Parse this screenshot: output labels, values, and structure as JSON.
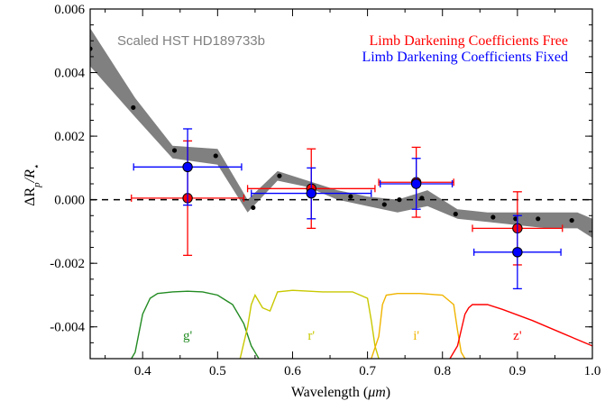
{
  "chart_data": {
    "type": "scatter",
    "xlabel": "Wavelength (",
    "xlabel_unit": "μm",
    "xlabel_close": ")",
    "ylabel": "ΔR",
    "ylabel_sub_p": "p",
    "ylabel_div": "/R",
    "ylabel_sub_star": "⋆",
    "xlim": [
      0.33,
      1.0
    ],
    "ylim": [
      -0.005,
      0.006
    ],
    "xticks": [
      0.4,
      0.5,
      0.6,
      0.7,
      0.8,
      0.9,
      1.0
    ],
    "xtick_labels": [
      "0.4",
      "0.5",
      "0.6",
      "0.7",
      "0.8",
      "0.9",
      "1.0"
    ],
    "yticks": [
      -0.004,
      -0.002,
      0.0,
      0.002,
      0.004,
      0.006
    ],
    "ytick_labels": [
      "-0.004",
      "-0.002",
      "0.000",
      "0.002",
      "0.004",
      "0.006"
    ],
    "reference_line_y": 0.0,
    "hst_label": "Scaled HST HD189733b",
    "hst_color": "#808080",
    "hst_band": {
      "x": [
        0.33,
        0.39,
        0.44,
        0.5,
        0.54,
        0.58,
        0.62,
        0.66,
        0.7,
        0.74,
        0.78,
        0.82,
        0.86,
        0.9,
        0.94,
        0.98,
        1.0
      ],
      "upper": [
        0.0054,
        0.0032,
        0.0017,
        0.0016,
        0.0,
        0.0009,
        0.0006,
        0.0003,
        0.0001,
        0.0,
        0.0003,
        -0.0003,
        -0.0004,
        -0.0004,
        -0.0004,
        -0.0004,
        -0.0006
      ],
      "lower": [
        0.0042,
        0.0026,
        0.0013,
        0.0011,
        -0.0004,
        0.0006,
        0.0004,
        0.0,
        -0.0002,
        -0.0004,
        -0.0002,
        -0.0006,
        -0.0007,
        -0.0008,
        -0.0009,
        -0.0009,
        -0.0012
      ]
    },
    "hst_points": {
      "x": [
        0.33,
        0.3875,
        0.4425,
        0.4975,
        0.5475,
        0.5825,
        0.6275,
        0.6775,
        0.7225,
        0.7425,
        0.7725,
        0.8175,
        0.8675,
        0.8975,
        0.9275,
        0.9725
      ],
      "y": [
        0.00475,
        0.0029,
        0.00155,
        0.00138,
        -0.00025,
        0.00075,
        0.00035,
        0.0001,
        -0.00015,
        0.0,
        5e-05,
        -0.00045,
        -0.00055,
        -0.0006,
        -0.0006,
        -0.00065
      ]
    },
    "series": [
      {
        "name": "Limb Darkening Coefficients Free",
        "color": "#ff0000",
        "points": [
          {
            "x": 0.46,
            "y": 5e-05,
            "xerr": 0.075,
            "yerr": 0.0018
          },
          {
            "x": 0.625,
            "y": 0.00035,
            "xerr": 0.085,
            "yerr": 0.00125
          },
          {
            "x": 0.765,
            "y": 0.00055,
            "xerr": 0.05,
            "yerr": 0.0011
          },
          {
            "x": 0.9,
            "y": -0.0009,
            "xerr": 0.06,
            "yerr": 0.00115
          }
        ]
      },
      {
        "name": "Limb Darkening Coefficients Fixed",
        "color": "#0000ff",
        "points": [
          {
            "x": 0.46,
            "y": 0.00103,
            "xerr": 0.072,
            "yerr": 0.0012
          },
          {
            "x": 0.625,
            "y": 0.0002,
            "xerr": 0.08,
            "yerr": 0.0008
          },
          {
            "x": 0.765,
            "y": 0.0005,
            "xerr": 0.048,
            "yerr": 0.0008
          },
          {
            "x": 0.9,
            "y": -0.00165,
            "xerr": 0.058,
            "yerr": 0.00115
          }
        ]
      }
    ],
    "bands": [
      {
        "label": "g'",
        "color": "#228b22",
        "label_x": 0.46,
        "x": [
          0.385,
          0.39,
          0.4,
          0.41,
          0.42,
          0.44,
          0.46,
          0.48,
          0.5,
          0.52,
          0.535,
          0.545,
          0.555
        ],
        "y": [
          -0.005,
          -0.0048,
          -0.0036,
          -0.0031,
          -0.00295,
          -0.0029,
          -0.00288,
          -0.0029,
          -0.003,
          -0.0033,
          -0.0039,
          -0.0046,
          -0.005
        ]
      },
      {
        "label": "r'",
        "color": "#c8c800",
        "label_x": 0.625,
        "x": [
          0.53,
          0.54,
          0.545,
          0.55,
          0.56,
          0.57,
          0.58,
          0.6,
          0.64,
          0.68,
          0.7,
          0.705,
          0.71,
          0.715
        ],
        "y": [
          -0.005,
          -0.004,
          -0.0033,
          -0.003,
          -0.0034,
          -0.0035,
          -0.0029,
          -0.00285,
          -0.0029,
          -0.0029,
          -0.0031,
          -0.0038,
          -0.0046,
          -0.005
        ]
      },
      {
        "label": "i'",
        "color": "#f0b400",
        "label_x": 0.765,
        "x": [
          0.705,
          0.715,
          0.72,
          0.725,
          0.74,
          0.77,
          0.8,
          0.815,
          0.82,
          0.825,
          0.83
        ],
        "y": [
          -0.005,
          -0.0043,
          -0.0033,
          -0.003,
          -0.00295,
          -0.00295,
          -0.003,
          -0.0033,
          -0.0041,
          -0.0048,
          -0.005
        ]
      },
      {
        "label": "z'",
        "color": "#ff0000",
        "label_x": 0.9,
        "x": [
          0.81,
          0.82,
          0.83,
          0.835,
          0.84,
          0.86,
          0.88,
          0.92,
          0.96,
          1.0
        ],
        "y": [
          -0.005,
          -0.0046,
          -0.0036,
          -0.0034,
          -0.0033,
          -0.0033,
          -0.00345,
          -0.0038,
          -0.0042,
          -0.0046
        ]
      }
    ]
  }
}
